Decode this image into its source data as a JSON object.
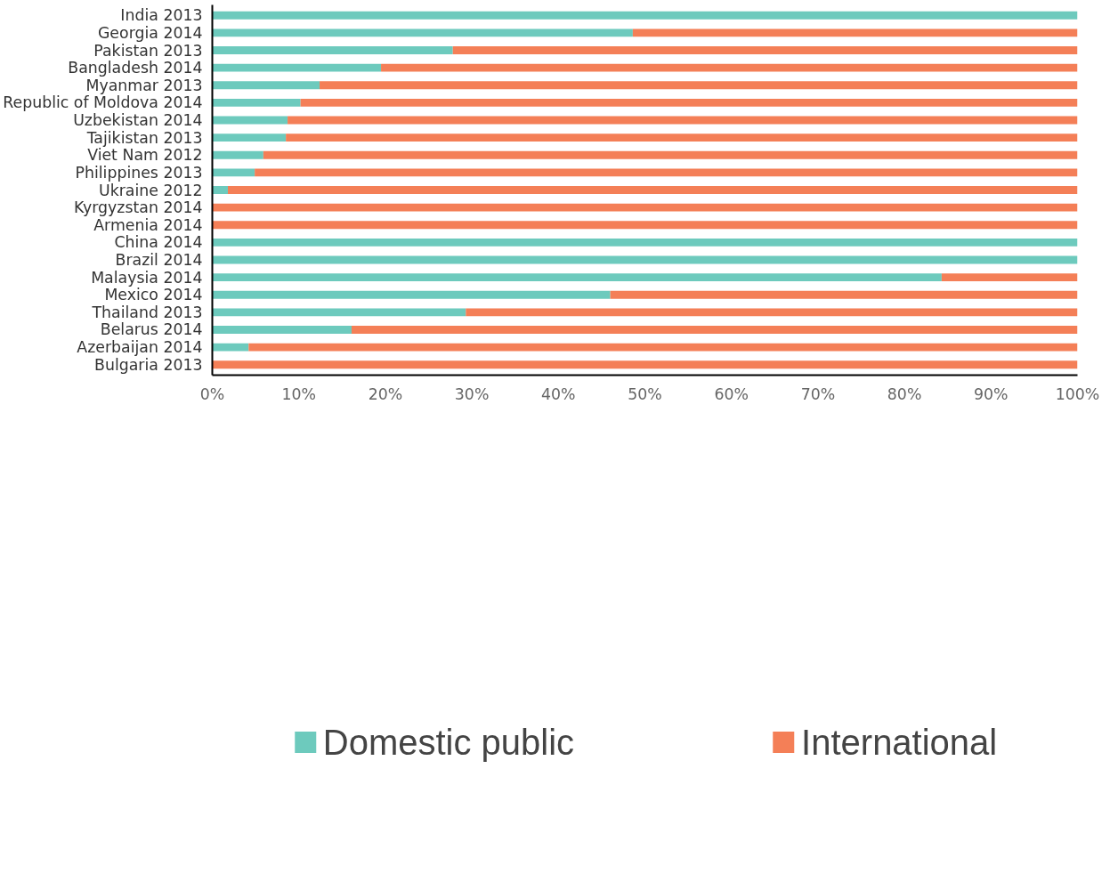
{
  "chart_data": {
    "type": "bar",
    "orientation": "horizontal",
    "stacked": true,
    "categories": [
      "India 2013",
      "Georgia 2014",
      "Pakistan 2013",
      "Bangladesh 2014",
      "Myanmar 2013",
      "Republic of Moldova 2014",
      "Uzbekistan 2014",
      "Tajikistan 2013",
      "Viet Nam 2012",
      "Philippines 2013",
      "Ukraine 2012",
      "Kyrgyzstan 2014",
      "Armenia 2014",
      "China 2014",
      "Brazil 2014",
      "Malaysia 2014",
      "Mexico 2014",
      "Thailand 2013",
      "Belarus 2014",
      "Azerbaijan 2014",
      "Bulgaria 2013"
    ],
    "series": [
      {
        "name": "Domestic public",
        "color": "#6dcabd",
        "values": [
          100,
          48.6,
          27.8,
          19.5,
          12.4,
          10.2,
          8.7,
          8.5,
          5.9,
          4.9,
          1.8,
          0,
          0,
          100,
          100,
          84.3,
          46,
          29.3,
          16.1,
          4.2,
          0
        ]
      },
      {
        "name": "International",
        "color": "#f47f57",
        "values": [
          0,
          51.4,
          72.2,
          80.5,
          87.6,
          89.8,
          91.3,
          91.5,
          94.1,
          95.1,
          98.2,
          100,
          100,
          0,
          0,
          15.7,
          54,
          70.7,
          83.9,
          95.8,
          100
        ]
      }
    ],
    "xlim": [
      0,
      100
    ],
    "xticks": [
      {
        "value": 0,
        "label": "0%"
      },
      {
        "value": 10,
        "label": "10%"
      },
      {
        "value": 20,
        "label": "20%"
      },
      {
        "value": 30,
        "label": "30%"
      },
      {
        "value": 40,
        "label": "40%"
      },
      {
        "value": 50,
        "label": "50%"
      },
      {
        "value": 60,
        "label": "60%"
      },
      {
        "value": 70,
        "label": "70%"
      },
      {
        "value": 80,
        "label": "80%"
      },
      {
        "value": 90,
        "label": "90%"
      },
      {
        "value": 100,
        "label": "100%"
      }
    ],
    "grid": false,
    "legend": "bottom"
  }
}
